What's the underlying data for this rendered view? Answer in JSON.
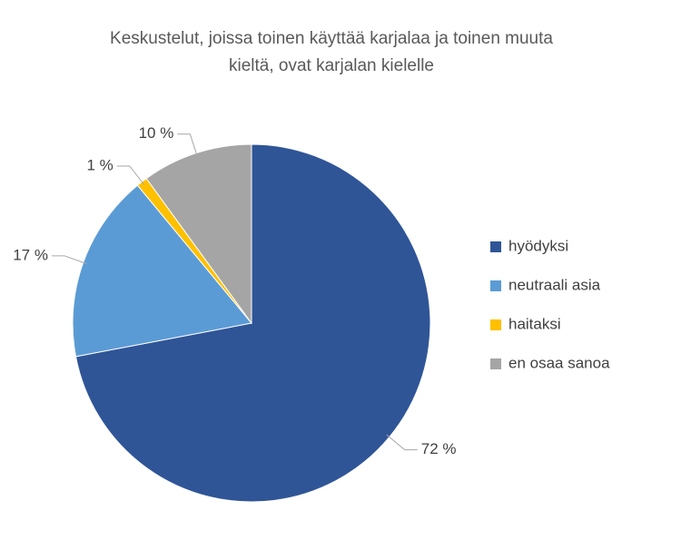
{
  "chart_data": {
    "type": "pie",
    "title": "Keskustelut, joissa toinen käyttää karjalaa ja toinen muuta kieltä, ovat karjalan kielelle",
    "categories": [
      "hyödyksi",
      "neutraali asia",
      "haitaksi",
      "en osaa sanoa"
    ],
    "values": [
      72,
      17,
      1,
      10
    ],
    "value_labels": [
      "72 %",
      "17 %",
      "1 %",
      "10 %"
    ],
    "colors": [
      "#2f5597",
      "#5b9bd5",
      "#ffc000",
      "#a5a5a5"
    ],
    "legend": "right"
  }
}
